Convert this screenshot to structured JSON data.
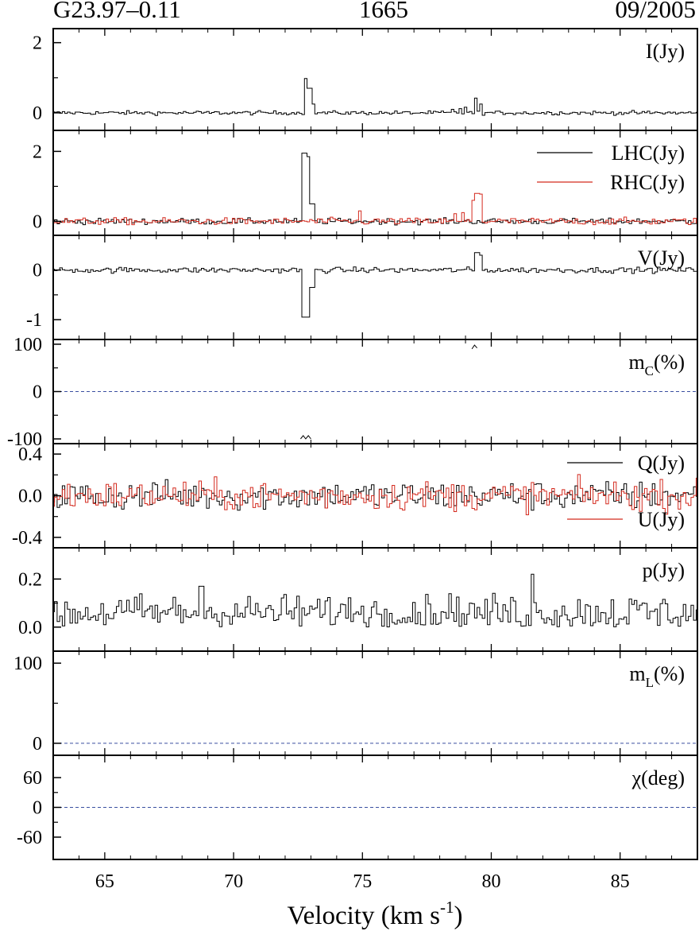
{
  "header": {
    "source": "G23.97–0.11",
    "frequency": "1665",
    "date": "09/2005"
  },
  "chart_data": {
    "type": "line",
    "xlabel": "Velocity (km s",
    "xlabel_sup": "-1",
    "xlabel_close": ")",
    "xlim": [
      63.0,
      88.0
    ],
    "xticks": [
      65,
      70,
      75,
      80,
      85
    ],
    "colors": {
      "black": "#000000",
      "red": "#d42a1e",
      "dashed": "#3a4fa0"
    },
    "panels": [
      {
        "id": "I",
        "label": "I(Jy)",
        "ylim": [
          -0.5,
          2.4
        ],
        "yticks": [
          0,
          2
        ],
        "ytick_labels": [
          "0",
          "2"
        ],
        "minor_yticks": [
          1
        ],
        "series": [
          {
            "color": "black",
            "baseline": 0.0,
            "noise": 0.04,
            "peaks": [
              [
                72.8,
                0.98
              ],
              [
                72.95,
                0.7
              ],
              [
                73.1,
                0.25
              ],
              [
                78.5,
                0.1
              ],
              [
                78.8,
                0.12
              ],
              [
                79.0,
                0.16
              ],
              [
                79.4,
                0.42
              ],
              [
                79.6,
                0.25
              ]
            ]
          }
        ]
      },
      {
        "id": "LR",
        "ylim": [
          -0.4,
          2.6
        ],
        "yticks": [
          0,
          2
        ],
        "ytick_labels": [
          "0",
          "2"
        ],
        "minor_yticks": [
          1
        ],
        "legend": [
          {
            "label": "LHC(Jy)",
            "color": "black"
          },
          {
            "label": "RHC(Jy)",
            "color": "red"
          }
        ],
        "series": [
          {
            "color": "black",
            "baseline": 0.0,
            "noise": 0.06,
            "peaks": [
              [
                72.75,
                1.95
              ],
              [
                72.9,
                1.85
              ],
              [
                73.05,
                0.5
              ]
            ]
          },
          {
            "color": "red",
            "baseline": 0.0,
            "noise": 0.07,
            "peaks": [
              [
                74.9,
                0.3
              ],
              [
                78.6,
                0.22
              ],
              [
                78.9,
                0.25
              ],
              [
                79.3,
                0.6
              ],
              [
                79.45,
                0.8
              ],
              [
                79.6,
                0.78
              ]
            ]
          }
        ]
      },
      {
        "id": "V",
        "label": "V(Jy)",
        "ylim": [
          -1.4,
          0.7
        ],
        "yticks": [
          0,
          -1
        ],
        "ytick_labels": [
          "0",
          "-1"
        ],
        "minor_yticks": [
          -0.5
        ],
        "series": [
          {
            "color": "black",
            "baseline": 0.0,
            "noise": 0.04,
            "peaks": [
              [
                72.75,
                -0.95
              ],
              [
                72.9,
                -0.95
              ],
              [
                73.05,
                -0.35
              ],
              [
                79.45,
                0.35
              ],
              [
                79.6,
                0.3
              ]
            ]
          }
        ]
      },
      {
        "id": "mc",
        "label": "m",
        "label_sub": "C",
        "label_tail": "(%)",
        "ylim": [
          -110,
          110
        ],
        "yticks": [
          100,
          0,
          -100
        ],
        "ytick_labels": [
          "100",
          "0",
          "-100"
        ],
        "minor_yticks": [
          50,
          -50
        ],
        "zero_line": true,
        "marks": [
          {
            "x": [
              72.6,
              72.7,
              72.8,
              72.9,
              73.0
            ],
            "y": [
              -100,
              -93,
              -100,
              -93,
              -100
            ]
          },
          {
            "x": [
              79.25,
              79.35,
              79.45
            ],
            "y": [
              90,
              98,
              92
            ]
          }
        ]
      },
      {
        "id": "QU",
        "ylim": [
          -0.5,
          0.5
        ],
        "yticks": [
          0.4,
          0.0,
          -0.4
        ],
        "ytick_labels": [
          "0.4",
          "0.0",
          "-0.4"
        ],
        "minor_yticks": [
          0.2,
          -0.2
        ],
        "legend_split": true,
        "legend": [
          {
            "label": "Q(Jy)",
            "color": "black"
          },
          {
            "label": "U(Jy)",
            "color": "red"
          }
        ],
        "series": [
          {
            "color": "black",
            "baseline": 0.0,
            "noise": 0.1,
            "peaks": []
          },
          {
            "color": "red",
            "baseline": 0.0,
            "noise": 0.1,
            "peaks": []
          }
        ]
      },
      {
        "id": "p",
        "label": "p(Jy)",
        "ylim": [
          -0.1,
          0.33
        ],
        "yticks": [
          0.2,
          0.0
        ],
        "ytick_labels": [
          "0.2",
          "0.0"
        ],
        "minor_yticks": [
          0.1
        ],
        "series": [
          {
            "color": "black",
            "baseline": 0.06,
            "noise": 0.055,
            "positive": true,
            "peaks": [
              [
                81.6,
                0.22
              ],
              [
                68.75,
                0.17
              ]
            ]
          }
        ]
      },
      {
        "id": "ml",
        "label": "m",
        "label_sub": "L",
        "label_tail": "(%)",
        "ylim": [
          -15,
          115
        ],
        "yticks": [
          100,
          0
        ],
        "ytick_labels": [
          "100",
          "0"
        ],
        "minor_yticks": [
          50
        ],
        "zero_line": true
      },
      {
        "id": "chi",
        "label": "χ(deg)",
        "ylim": [
          -105,
          105
        ],
        "yticks": [
          60,
          0,
          -60
        ],
        "ytick_labels": [
          "60",
          "0",
          "-60"
        ],
        "minor_yticks": [
          30,
          -30
        ],
        "zero_line": true
      }
    ]
  }
}
